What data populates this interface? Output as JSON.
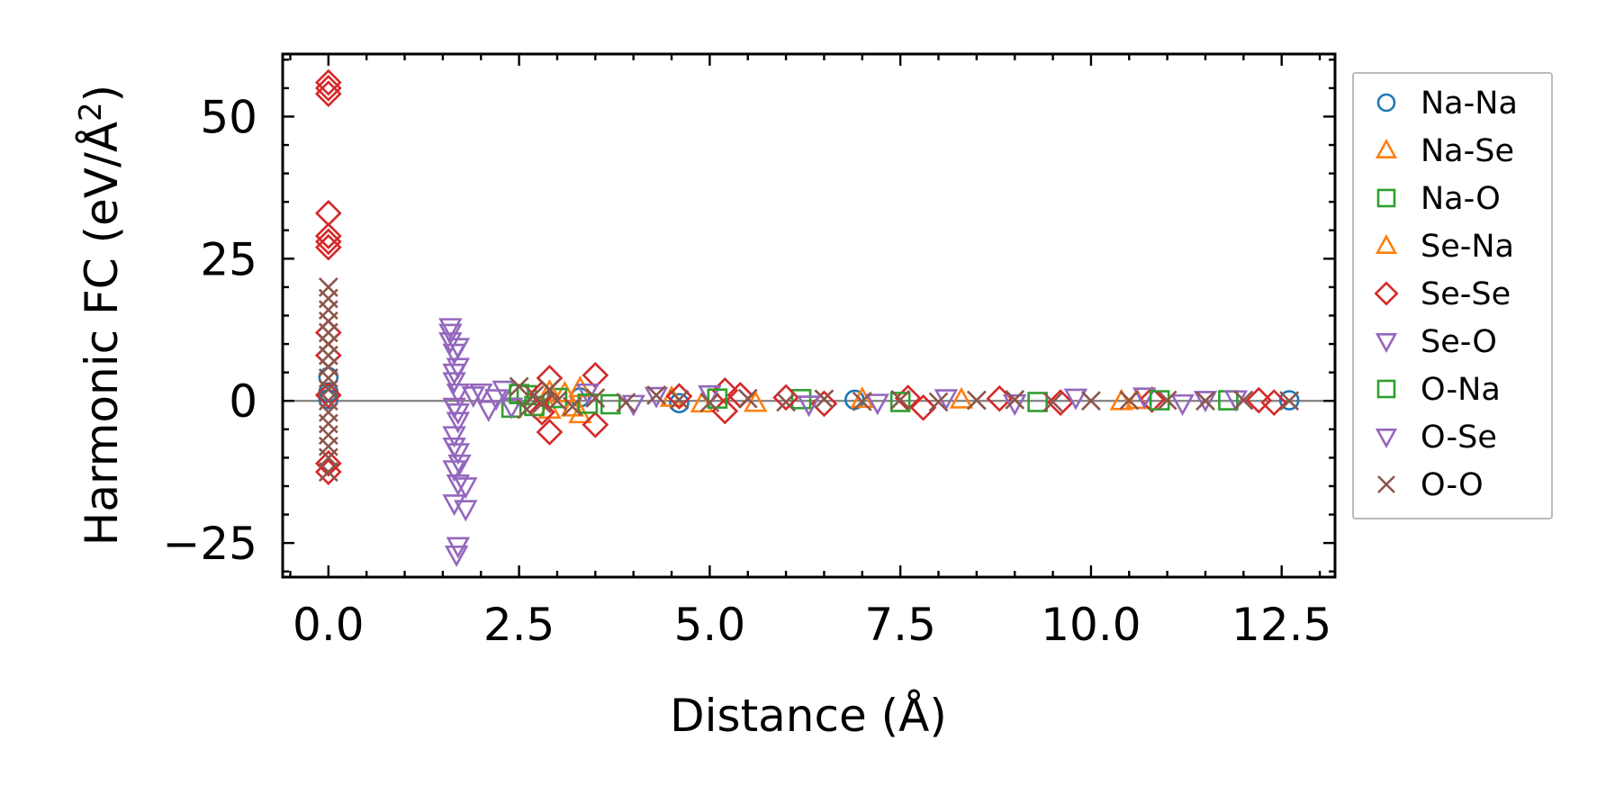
{
  "chart_data": {
    "type": "scatter",
    "title": "",
    "xlabel": "Distance (Å)",
    "ylabel": "Harmonic FC (eV/Å²)",
    "ylabel_parts": {
      "main": "Harmonic FC (eV/Å",
      "sup": "2",
      "close": ")"
    },
    "xlim": [
      -0.6,
      13.2
    ],
    "ylim": [
      -31,
      61
    ],
    "xticks": [
      {
        "value": 0.0,
        "label": "0.0"
      },
      {
        "value": 2.5,
        "label": "2.5"
      },
      {
        "value": 5.0,
        "label": "5.0"
      },
      {
        "value": 7.5,
        "label": "7.5"
      },
      {
        "value": 10.0,
        "label": "10.0"
      },
      {
        "value": 12.5,
        "label": "12.5"
      }
    ],
    "yticks": [
      {
        "value": -25,
        "label": "−25"
      },
      {
        "value": 0,
        "label": "0"
      },
      {
        "value": 25,
        "label": "25"
      },
      {
        "value": 50,
        "label": "50"
      }
    ],
    "zero_line": 0,
    "legend_position": "outside-right",
    "series": [
      {
        "name": "Na-Na",
        "marker": "circle",
        "color": "#1f77b4",
        "points": [
          [
            0,
            1.5
          ],
          [
            0,
            4.2
          ],
          [
            0,
            0.3
          ],
          [
            3.3,
            0.6
          ],
          [
            4.6,
            -0.4
          ],
          [
            6.9,
            0.2
          ],
          [
            12.6,
            0.1
          ]
        ]
      },
      {
        "name": "Na-Se",
        "marker": "triangle-up",
        "color": "#ff7f0e",
        "points": [
          [
            2.9,
            -1.6
          ],
          [
            3.1,
            1.3
          ],
          [
            3.3,
            -2.4
          ],
          [
            4.5,
            0.5
          ],
          [
            5.6,
            -0.4
          ],
          [
            8.3,
            0.2
          ],
          [
            10.4,
            -0.1
          ]
        ]
      },
      {
        "name": "Na-O",
        "marker": "square",
        "color": "#2ca02c",
        "points": [
          [
            2.4,
            -1.2
          ],
          [
            2.6,
            1.0
          ],
          [
            3.0,
            0.5
          ],
          [
            3.7,
            -0.6
          ],
          [
            6.2,
            0.3
          ],
          [
            9.3,
            -0.2
          ],
          [
            11.8,
            0.1
          ]
        ]
      },
      {
        "name": "Se-Na",
        "marker": "triangle-up",
        "color": "#ff7f0e",
        "points": [
          [
            2.9,
            1.6
          ],
          [
            3.2,
            -1.2
          ],
          [
            3.3,
            2.2
          ],
          [
            4.9,
            -0.5
          ],
          [
            7.0,
            0.3
          ],
          [
            10.6,
            0.1
          ]
        ]
      },
      {
        "name": "Se-Se",
        "marker": "diamond",
        "color": "#d62728",
        "points": [
          [
            0,
            56
          ],
          [
            0,
            55
          ],
          [
            0,
            54
          ],
          [
            0,
            33
          ],
          [
            0,
            29
          ],
          [
            0,
            28
          ],
          [
            0,
            27
          ],
          [
            0,
            12
          ],
          [
            0,
            8
          ],
          [
            0,
            1
          ],
          [
            0,
            -11
          ],
          [
            0,
            -12.5
          ],
          [
            2.8,
            -2
          ],
          [
            2.9,
            4
          ],
          [
            2.9,
            -5.5
          ],
          [
            2.8,
            1.2
          ],
          [
            3.5,
            4.5
          ],
          [
            3.5,
            -4.2
          ],
          [
            4.6,
            0.8
          ],
          [
            5.2,
            1.8
          ],
          [
            5.2,
            -1.8
          ],
          [
            5.4,
            1
          ],
          [
            6.0,
            0.6
          ],
          [
            6.5,
            -0.5
          ],
          [
            7.6,
            0.5
          ],
          [
            7.8,
            -1.2
          ],
          [
            8.8,
            0.4
          ],
          [
            9.6,
            -0.3
          ],
          [
            10.8,
            0.2
          ],
          [
            12.2,
            0.1
          ],
          [
            12.4,
            -0.3
          ]
        ]
      },
      {
        "name": "Se-O",
        "marker": "triangle-down",
        "color": "#9467bd",
        "points": [
          [
            1.6,
            13
          ],
          [
            1.6,
            10.5
          ],
          [
            1.65,
            8.5
          ],
          [
            1.7,
            6
          ],
          [
            1.65,
            3.5
          ],
          [
            1.7,
            1.5
          ],
          [
            1.65,
            -1
          ],
          [
            1.7,
            -3.5
          ],
          [
            1.65,
            -6
          ],
          [
            1.7,
            -9
          ],
          [
            1.65,
            -12
          ],
          [
            1.7,
            -14.5
          ],
          [
            1.8,
            -15
          ],
          [
            1.65,
            -18
          ],
          [
            1.7,
            -25.5
          ],
          [
            1.68,
            -27
          ],
          [
            2.0,
            1.5
          ],
          [
            2.1,
            -1.5
          ],
          [
            2.3,
            2
          ],
          [
            2.4,
            -1
          ],
          [
            3.4,
            1.5
          ],
          [
            4.0,
            -0.5
          ],
          [
            5.0,
            1.2
          ],
          [
            6.3,
            -0.6
          ],
          [
            8.1,
            0.5
          ],
          [
            9.0,
            -0.4
          ],
          [
            10.7,
            0.8
          ],
          [
            11.2,
            -0.4
          ],
          [
            11.9,
            0.3
          ]
        ]
      },
      {
        "name": "O-Na",
        "marker": "square",
        "color": "#2ca02c",
        "points": [
          [
            2.5,
            1.2
          ],
          [
            2.7,
            -0.9
          ],
          [
            3.4,
            -0.5
          ],
          [
            5.1,
            0.4
          ],
          [
            7.5,
            -0.2
          ],
          [
            10.9,
            0.1
          ]
        ]
      },
      {
        "name": "O-Se",
        "marker": "triangle-down",
        "color": "#9467bd",
        "points": [
          [
            1.6,
            12
          ],
          [
            1.7,
            9.5
          ],
          [
            1.65,
            5
          ],
          [
            1.7,
            -2
          ],
          [
            1.65,
            -8
          ],
          [
            1.72,
            -11
          ],
          [
            1.8,
            -19
          ],
          [
            1.9,
            1
          ],
          [
            2.2,
            0.5
          ],
          [
            4.3,
            0.9
          ],
          [
            7.2,
            -0.3
          ],
          [
            9.8,
            0.6
          ],
          [
            11.5,
            0.2
          ]
        ]
      },
      {
        "name": "O-O",
        "marker": "x",
        "color": "#8c564b",
        "points": [
          [
            0,
            20
          ],
          [
            0,
            18
          ],
          [
            0,
            16
          ],
          [
            0,
            14
          ],
          [
            0,
            12
          ],
          [
            0,
            10
          ],
          [
            0,
            8
          ],
          [
            0,
            6
          ],
          [
            0,
            4
          ],
          [
            0,
            2
          ],
          [
            0,
            0
          ],
          [
            0,
            -2
          ],
          [
            0,
            -4
          ],
          [
            0,
            -6
          ],
          [
            0,
            -8
          ],
          [
            0,
            -10
          ],
          [
            0,
            -12.5
          ],
          [
            2.5,
            2.5
          ],
          [
            2.6,
            -1.5
          ],
          [
            2.7,
            1
          ],
          [
            2.8,
            -0.5
          ],
          [
            2.9,
            2
          ],
          [
            3.0,
            0
          ],
          [
            3.2,
            -1
          ],
          [
            3.5,
            0.5
          ],
          [
            3.9,
            -0.3
          ],
          [
            4.3,
            1
          ],
          [
            4.6,
            0.2
          ],
          [
            5.0,
            -0.3
          ],
          [
            5.5,
            0.4
          ],
          [
            6.0,
            -0.2
          ],
          [
            6.5,
            0.3
          ],
          [
            7.0,
            -0.1
          ],
          [
            7.5,
            0.2
          ],
          [
            8.0,
            -0.2
          ],
          [
            8.5,
            0.1
          ],
          [
            9.0,
            0.2
          ],
          [
            9.5,
            -0.2
          ],
          [
            10.0,
            0
          ],
          [
            10.5,
            0.1
          ],
          [
            11.0,
            0.1
          ],
          [
            11.5,
            0
          ],
          [
            12.0,
            0.1
          ],
          [
            12.6,
            0
          ]
        ]
      }
    ]
  }
}
